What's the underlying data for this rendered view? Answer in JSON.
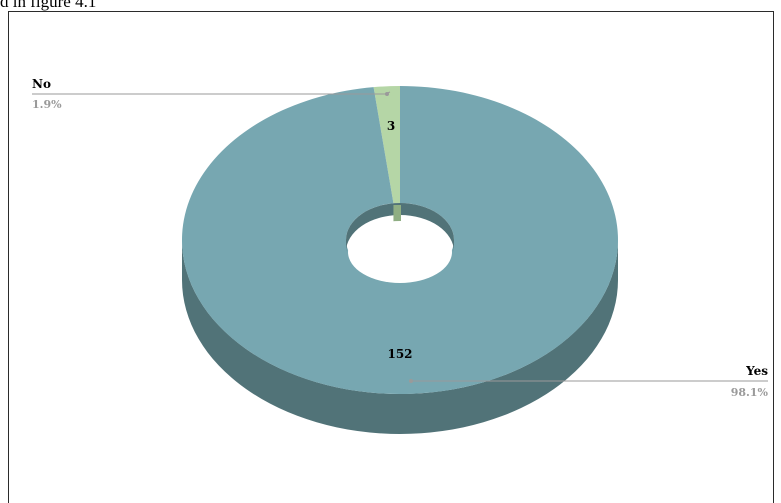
{
  "caption": {
    "text": "d in figure 4.1"
  },
  "chart_data": {
    "type": "pie",
    "style": "3d-doughnut",
    "categories": [
      "No",
      "Yes"
    ],
    "values": [
      3,
      152
    ],
    "percentages": [
      "1.9%",
      "98.1%"
    ],
    "colors": {
      "No": "#b5d6a6",
      "Yes": "#77a7b1"
    },
    "side_colors": {
      "No": "#8fae83",
      "Yes": "#517378"
    },
    "leader_line_color": "#9a9a9a",
    "title": "",
    "legend": "none"
  }
}
